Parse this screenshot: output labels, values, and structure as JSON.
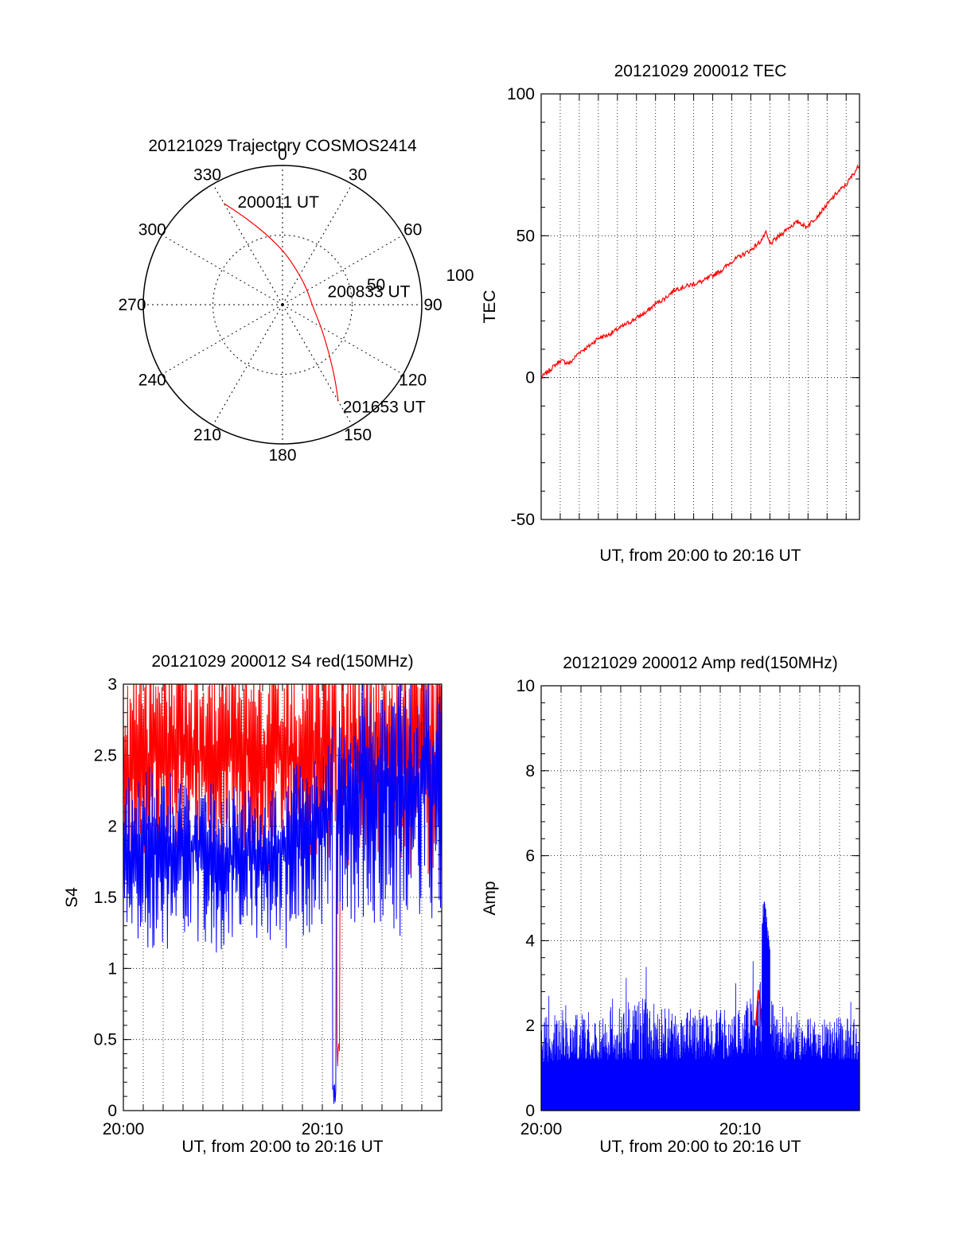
{
  "chart_data": [
    {
      "id": "polar",
      "type": "polar",
      "title": "20121029 Trajectory COSMOS2414",
      "angle_labels": [
        "0",
        "30",
        "60",
        "90",
        "120",
        "150",
        "180",
        "210",
        "240",
        "270",
        "300",
        "330"
      ],
      "radius_labels": [
        "50",
        "100"
      ],
      "rmax": 100,
      "trajectory": [
        {
          "az": 330,
          "r": 84
        },
        {
          "az": 337,
          "r": 68
        },
        {
          "az": 347,
          "r": 52
        },
        {
          "az": 2,
          "r": 38
        },
        {
          "az": 22,
          "r": 27
        },
        {
          "az": 55,
          "r": 21
        },
        {
          "az": 95,
          "r": 22
        },
        {
          "az": 120,
          "r": 32
        },
        {
          "az": 136,
          "r": 48
        },
        {
          "az": 145,
          "r": 66
        },
        {
          "az": 150,
          "r": 80
        }
      ],
      "annotations": [
        {
          "text": "200011 UT",
          "az": 338,
          "r": 80
        },
        {
          "text": "200833 UT",
          "az": 74,
          "r": 36
        },
        {
          "text": "201653 UT",
          "az": 148,
          "r": 86
        }
      ]
    },
    {
      "id": "tec",
      "type": "line",
      "title": "20121029 200012 TEC",
      "xlabel": "UT, from 20:00 to 20:16 UT",
      "ylabel": "TEC",
      "xlim": [
        0,
        16.7
      ],
      "ylim": [
        -50,
        100
      ],
      "yticks": [
        "-50",
        "0",
        "50",
        "100"
      ],
      "xtick_labels": [],
      "series": [
        {
          "name": "TEC",
          "color": "#ff0000",
          "x": [
            0,
            0.5,
            1,
            1.5,
            2,
            2.5,
            3,
            3.5,
            4,
            4.5,
            5,
            5.5,
            6,
            6.5,
            7,
            7.5,
            8,
            8.5,
            9,
            9.5,
            10,
            10.5,
            11,
            11.5,
            11.8,
            12,
            12.5,
            13,
            13.5,
            13.9,
            14.5,
            15,
            15.5,
            16,
            16.7
          ],
          "y": [
            0,
            3,
            6,
            5,
            9,
            11,
            14,
            15,
            17,
            19,
            21,
            23,
            26,
            28,
            31,
            32,
            33,
            34,
            36,
            38,
            41,
            43,
            45,
            48,
            51,
            47,
            50,
            53,
            55,
            53,
            57,
            61,
            65,
            68,
            75
          ]
        }
      ]
    },
    {
      "id": "s4",
      "type": "line",
      "title": "20121029 200012 S4 red(150MHz)",
      "xlabel": "UT, from 20:00 to 20:16 UT",
      "ylabel": "S4",
      "xlim": [
        0,
        16
      ],
      "ylim": [
        0,
        3
      ],
      "yticks": [
        "0",
        "0.5",
        "1",
        "1.5",
        "2",
        "2.5",
        "3"
      ],
      "xtick_labels": [
        {
          "x": 0,
          "label": "20:00"
        },
        {
          "x": 10,
          "label": "20:10"
        }
      ],
      "series": [
        {
          "name": "red",
          "color": "#ff0000",
          "band_low": [
            1.6,
            1.7,
            1.7,
            1.8,
            1.7,
            1.7,
            1.8,
            1.6,
            1.7,
            1.6,
            1.7,
            1.6,
            1.7,
            1.7,
            1.6,
            1.6,
            1.7
          ],
          "band_high": [
            3,
            3,
            3,
            3,
            3,
            3,
            3,
            3,
            3,
            3,
            3,
            3,
            3,
            3,
            3,
            3,
            3
          ],
          "dip": {
            "x": 10.8,
            "min": 0.3
          }
        },
        {
          "name": "blue",
          "color": "#0000ff",
          "band_low": [
            0.9,
            1.1,
            1.1,
            1.2,
            1.1,
            1.1,
            1.2,
            1.2,
            1.1,
            1.2,
            1.3,
            1.3,
            1.3,
            1.3,
            1.2,
            1.3,
            1.3
          ],
          "band_high": [
            2.3,
            2.4,
            2.3,
            2.3,
            2.3,
            2.2,
            2.2,
            2.2,
            2.3,
            2.4,
            2.5,
            2.8,
            3,
            3,
            3,
            3,
            3
          ],
          "dip": {
            "x": 10.6,
            "min": 0
          }
        }
      ]
    },
    {
      "id": "amp",
      "type": "line",
      "title": "20121029 200012 Amp red(150MHz)",
      "xlabel": "UT, from 20:00 to 20:16 UT",
      "ylabel": "Amp",
      "xlim": [
        0,
        16
      ],
      "ylim": [
        0,
        10
      ],
      "yticks": [
        "0",
        "2",
        "4",
        "6",
        "8",
        "10"
      ],
      "xtick_labels": [
        {
          "x": 0,
          "label": "20:00"
        },
        {
          "x": 10,
          "label": "20:10"
        }
      ],
      "series": [
        {
          "name": "blue",
          "color": "#0000ff",
          "band_low": [
            1.1,
            1.2,
            1.2,
            1.2,
            1.2,
            1.2,
            1.2,
            1.2,
            1.2,
            1.2,
            1.3,
            1.3,
            1.2,
            1.2,
            1.2,
            1.2,
            1.2
          ],
          "band_high": [
            2.2,
            2.4,
            2.4,
            2.4,
            2.5,
            2.9,
            2.5,
            2.4,
            2.4,
            2.4,
            2.5,
            3.2,
            2.3,
            2.2,
            2.2,
            2.2,
            2.2
          ],
          "spike": {
            "x_start": 11.1,
            "x_end": 11.5,
            "max": 5.2
          }
        },
        {
          "name": "red",
          "color": "#ff0000",
          "spike": {
            "x_start": 10.8,
            "x_end": 11.1,
            "max": 2.9
          }
        }
      ]
    }
  ]
}
